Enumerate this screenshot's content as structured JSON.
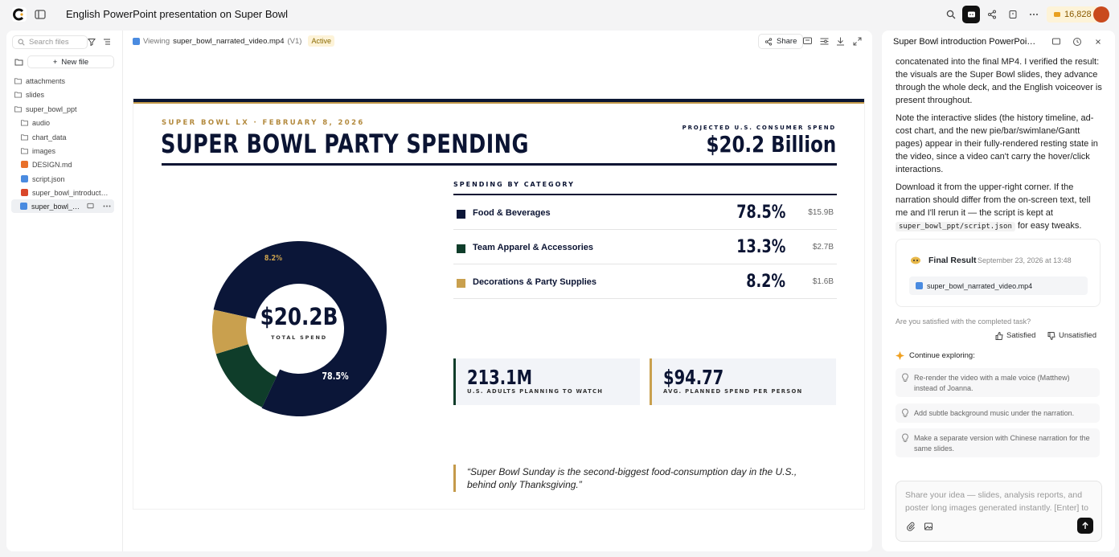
{
  "app": {
    "title": "English PowerPoint presentation on Super Bowl",
    "credits": "16,828"
  },
  "sidebar": {
    "search_placeholder": "Search files",
    "new_file_label": "New file",
    "items": [
      {
        "label": "attachments",
        "type": "folder"
      },
      {
        "label": "slides",
        "type": "folder"
      },
      {
        "label": "super_bowl_ppt",
        "type": "folder"
      },
      {
        "label": "audio",
        "type": "folder"
      },
      {
        "label": "chart_data",
        "type": "folder"
      },
      {
        "label": "images",
        "type": "folder"
      },
      {
        "label": "DESIGN.md",
        "type": "md"
      },
      {
        "label": "script.json",
        "type": "json"
      },
      {
        "label": "super_bowl_introduct…",
        "type": "pptx"
      },
      {
        "label": "super_bowl_…",
        "type": "mp4"
      }
    ]
  },
  "viewer": {
    "viewing_label": "Viewing",
    "file_name": "super_bowl_narrated_video.mp4",
    "version": "(V1)",
    "status": "Active",
    "share_label": "Share"
  },
  "slide": {
    "eyebrow": "SUPER BOWL LX · FEBRUARY 8, 2026",
    "title": "SUPER BOWL PARTY SPENDING",
    "projected_label": "PROJECTED U.S. CONSUMER SPEND",
    "projected_value": "$20.2 Billion",
    "categories_heading": "SPENDING BY CATEGORY",
    "categories": [
      {
        "name": "Food & Beverages",
        "pct": "78.5%",
        "amount": "$15.9B",
        "color": "#0b1638"
      },
      {
        "name": "Team Apparel & Accessories",
        "pct": "13.3%",
        "amount": "$2.7B",
        "color": "#0f3d2a"
      },
      {
        "name": "Decorations & Party Supplies",
        "pct": "8.2%",
        "amount": "$1.6B",
        "color": "#c9a04e"
      }
    ],
    "donut_center_value": "$20.2B",
    "donut_center_label": "TOTAL SPEND",
    "donut_label_large": "78.5%",
    "donut_label_small": "8.2%",
    "stats": [
      {
        "value": "213.1M",
        "label": "U.S. ADULTS PLANNING TO WATCH",
        "accent": "#0f3d2a"
      },
      {
        "value": "$94.77",
        "label": "AVG. PLANNED SPEND PER PERSON",
        "accent": "#c9a04e"
      }
    ],
    "quote": "“Super Bowl Sunday is the second-biggest food-consumption day in the U.S., behind only Thanksgiving.”"
  },
  "chart_data": {
    "type": "pie",
    "categories": [
      "Food & Beverages",
      "Team Apparel & Accessories",
      "Decorations & Party Supplies"
    ],
    "values": [
      78.5,
      13.3,
      8.2
    ],
    "colors": [
      "#0b1638",
      "#0f3d2a",
      "#c9a04e"
    ]
  },
  "chat": {
    "title": "Super Bowl introduction PowerPoi…",
    "para1": "concatenated into the final MP4. I verified the result: the visuals are the Super Bowl slides, they advance through the whole deck, and the English voiceover is present throughout.",
    "para2": "Note the interactive slides (the history timeline, ad-cost chart, and the new pie/bar/swimlane/Gantt pages) appear in their fully-rendered resting state in the video, since a video can't carry the hover/click interactions.",
    "para3_a": "Download it from the upper-right corner. If the narration should differ from the on-screen text, tell me and I'll rerun it — the script is kept at",
    "para3_code": "super_bowl_ppt/script.json",
    "para3_b": "for easy tweaks.",
    "result_title": "Final Result",
    "result_date": "September 23, 2026 at 13:48",
    "result_file": "super_bowl_narrated_video.mp4",
    "satisfied_question": "Are you satisfied with the completed task?",
    "satisfied_label": "Satisfied",
    "unsatisfied_label": "Unsatisfied",
    "continue_label": "Continue exploring:",
    "suggestions": [
      "Re-render the video with a male voice (Matthew) instead of Joanna.",
      "Add subtle background music under the narration.",
      "Make a separate version with Chinese narration for the same slides."
    ],
    "input_placeholder": "Share your idea — slides, analysis reports, and poster long images generated instantly. [Enter] to"
  }
}
